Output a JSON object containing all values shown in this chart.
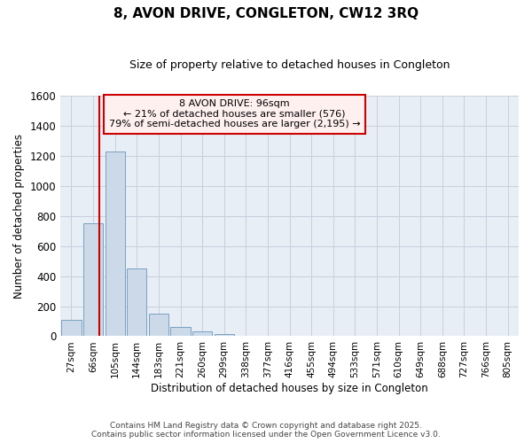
{
  "title": "8, AVON DRIVE, CONGLETON, CW12 3RQ",
  "subtitle": "Size of property relative to detached houses in Congleton",
  "xlabel": "Distribution of detached houses by size in Congleton",
  "ylabel": "Number of detached properties",
  "bar_color": "#ccd9e8",
  "bar_edge_color": "#7aa0c0",
  "grid_color": "#c8d0dc",
  "background_color": "#e8eef6",
  "categories": [
    "27sqm",
    "66sqm",
    "105sqm",
    "144sqm",
    "183sqm",
    "221sqm",
    "260sqm",
    "299sqm",
    "338sqm",
    "377sqm",
    "416sqm",
    "455sqm",
    "494sqm",
    "533sqm",
    "571sqm",
    "610sqm",
    "649sqm",
    "688sqm",
    "727sqm",
    "766sqm",
    "805sqm"
  ],
  "values": [
    110,
    750,
    1230,
    450,
    150,
    60,
    35,
    15,
    0,
    0,
    0,
    0,
    0,
    0,
    0,
    0,
    0,
    0,
    0,
    0,
    0
  ],
  "ylim": [
    0,
    1600
  ],
  "yticks": [
    0,
    200,
    400,
    600,
    800,
    1000,
    1200,
    1400,
    1600
  ],
  "annotation_line1": "8 AVON DRIVE: 96sqm",
  "annotation_line2": "← 21% of detached houses are smaller (576)",
  "annotation_line3": "79% of semi-detached houses are larger (2,195) →",
  "red_line_color": "#cc0000",
  "annotation_bg": "#fff0f0",
  "annotation_edge": "#cc0000",
  "footer_line1": "Contains HM Land Registry data © Crown copyright and database right 2025.",
  "footer_line2": "Contains public sector information licensed under the Open Government Licence v3.0."
}
